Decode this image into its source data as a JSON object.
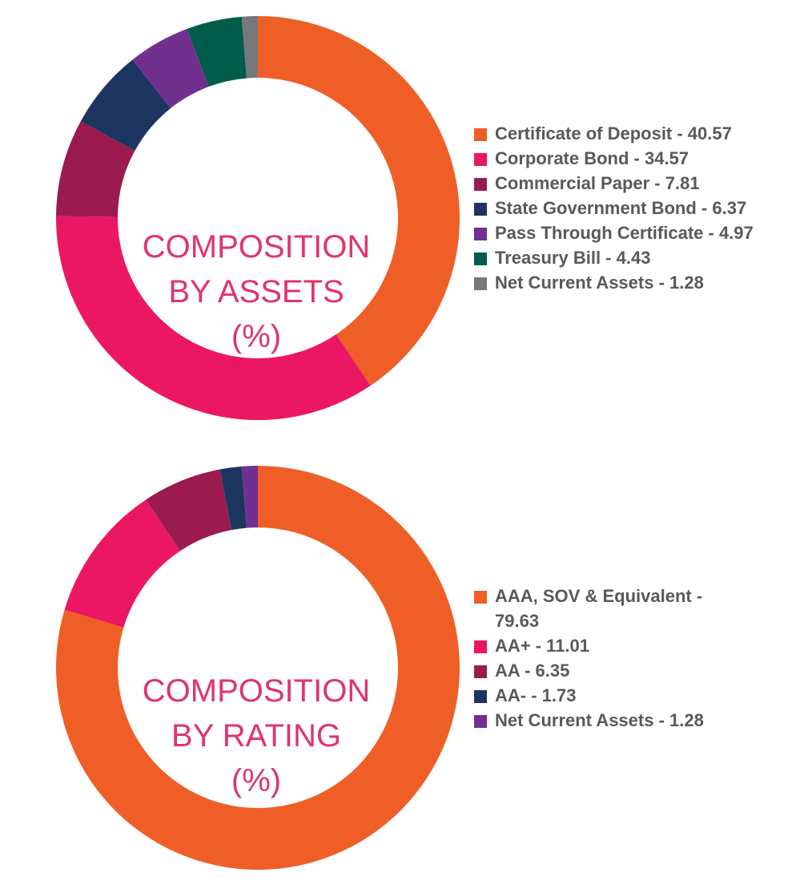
{
  "chart_data": [
    {
      "type": "pie",
      "variant": "donut",
      "title_lines": [
        "COMPOSITION",
        "BY ASSETS",
        "(%)"
      ],
      "series": [
        {
          "name": "Certificate of Deposit",
          "value": 40.57,
          "label": "Certificate of Deposit - 40.57",
          "color": "#f05e28"
        },
        {
          "name": "Corporate Bond",
          "value": 34.57,
          "label": "Corporate Bond - 34.57",
          "color": "#ec1763"
        },
        {
          "name": "Commercial Paper",
          "value": 7.81,
          "label": "Commercial Paper - 7.81",
          "color": "#9b1b4e"
        },
        {
          "name": "State Government Bond",
          "value": 6.37,
          "label": "State Government Bond - 6.37",
          "color": "#1c3661"
        },
        {
          "name": "Pass Through Certificate",
          "value": 4.97,
          "label": "Pass Through Certificate - 4.97",
          "color": "#71308f"
        },
        {
          "name": "Treasury Bill",
          "value": 4.43,
          "label": "Treasury Bill - 4.43",
          "color": "#005c4b"
        },
        {
          "name": "Net Current Assets",
          "value": 1.28,
          "label": "Net Current Assets - 1.28",
          "color": "#77787b"
        }
      ],
      "legend_position": "right"
    },
    {
      "type": "pie",
      "variant": "donut",
      "title_lines": [
        "COMPOSITION",
        "BY RATING",
        "(%)"
      ],
      "series": [
        {
          "name": "AAA, SOV & Equivalent",
          "value": 79.63,
          "label": "AAA, SOV & Equivalent - 79.63",
          "color": "#f05e28"
        },
        {
          "name": "AA+",
          "value": 11.01,
          "label": "AA+ - 11.01",
          "color": "#ec1763"
        },
        {
          "name": "AA",
          "value": 6.35,
          "label": "AA - 6.35",
          "color": "#9b1b4e"
        },
        {
          "name": "AA-",
          "value": 1.73,
          "label": "AA- - 1.73",
          "color": "#1c3661"
        },
        {
          "name": "Net Current Assets",
          "value": 1.28,
          "label": "Net Current Assets - 1.28",
          "color": "#71308f"
        }
      ],
      "legend_position": "right"
    }
  ]
}
